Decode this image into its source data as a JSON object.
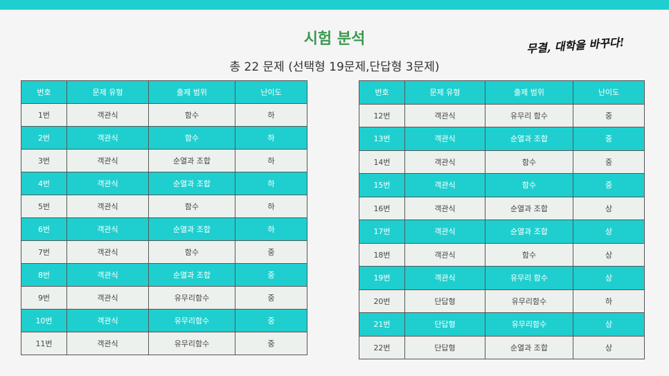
{
  "header": {
    "title": "시험 분석",
    "subtitle": "총 22 문제 (선택형 19문제,단답형 3문제)",
    "slogan": "무결, 대학을 바꾸다!"
  },
  "colors": {
    "accent": "#1fcfcf",
    "title": "#3a9a4e",
    "row_light": "#edf1ee"
  },
  "columns": [
    "번호",
    "문제 유형",
    "출제 범위",
    "난이도"
  ],
  "left_rows": [
    [
      "1번",
      "객관식",
      "함수",
      "하"
    ],
    [
      "2번",
      "객관식",
      "함수",
      "하"
    ],
    [
      "3번",
      "객관식",
      "순열과 조합",
      "하"
    ],
    [
      "4번",
      "객관식",
      "순열과 조합",
      "하"
    ],
    [
      "5번",
      "객관식",
      "함수",
      "하"
    ],
    [
      "6번",
      "객관식",
      "순열과 조합",
      "하"
    ],
    [
      "7번",
      "객관식",
      "함수",
      "중"
    ],
    [
      "8번",
      "객관식",
      "순열과 조합",
      "중"
    ],
    [
      "9번",
      "객관식",
      "유무리함수",
      "중"
    ],
    [
      "10번",
      "객관식",
      "유무리함수",
      "중"
    ],
    [
      "11번",
      "객관식",
      "유무리함수",
      "중"
    ]
  ],
  "right_rows": [
    [
      "12번",
      "객관식",
      "유무리 함수",
      "중"
    ],
    [
      "13번",
      "객관식",
      "순열과 조합",
      "중"
    ],
    [
      "14번",
      "객관식",
      "함수",
      "중"
    ],
    [
      "15번",
      "객관식",
      "함수",
      "중"
    ],
    [
      "16번",
      "객관식",
      "순열과 조합",
      "상"
    ],
    [
      "17번",
      "객관식",
      "순열과 조합",
      "상"
    ],
    [
      "18번",
      "객관식",
      "함수",
      "상"
    ],
    [
      "19번",
      "객관식",
      "유무리 함수",
      "상"
    ],
    [
      "20번",
      "단답형",
      "유무리함수",
      "하"
    ],
    [
      "21번",
      "단답형",
      "유무리함수",
      "상"
    ],
    [
      "22번",
      "단답형",
      "순열과 조합",
      "상"
    ]
  ]
}
